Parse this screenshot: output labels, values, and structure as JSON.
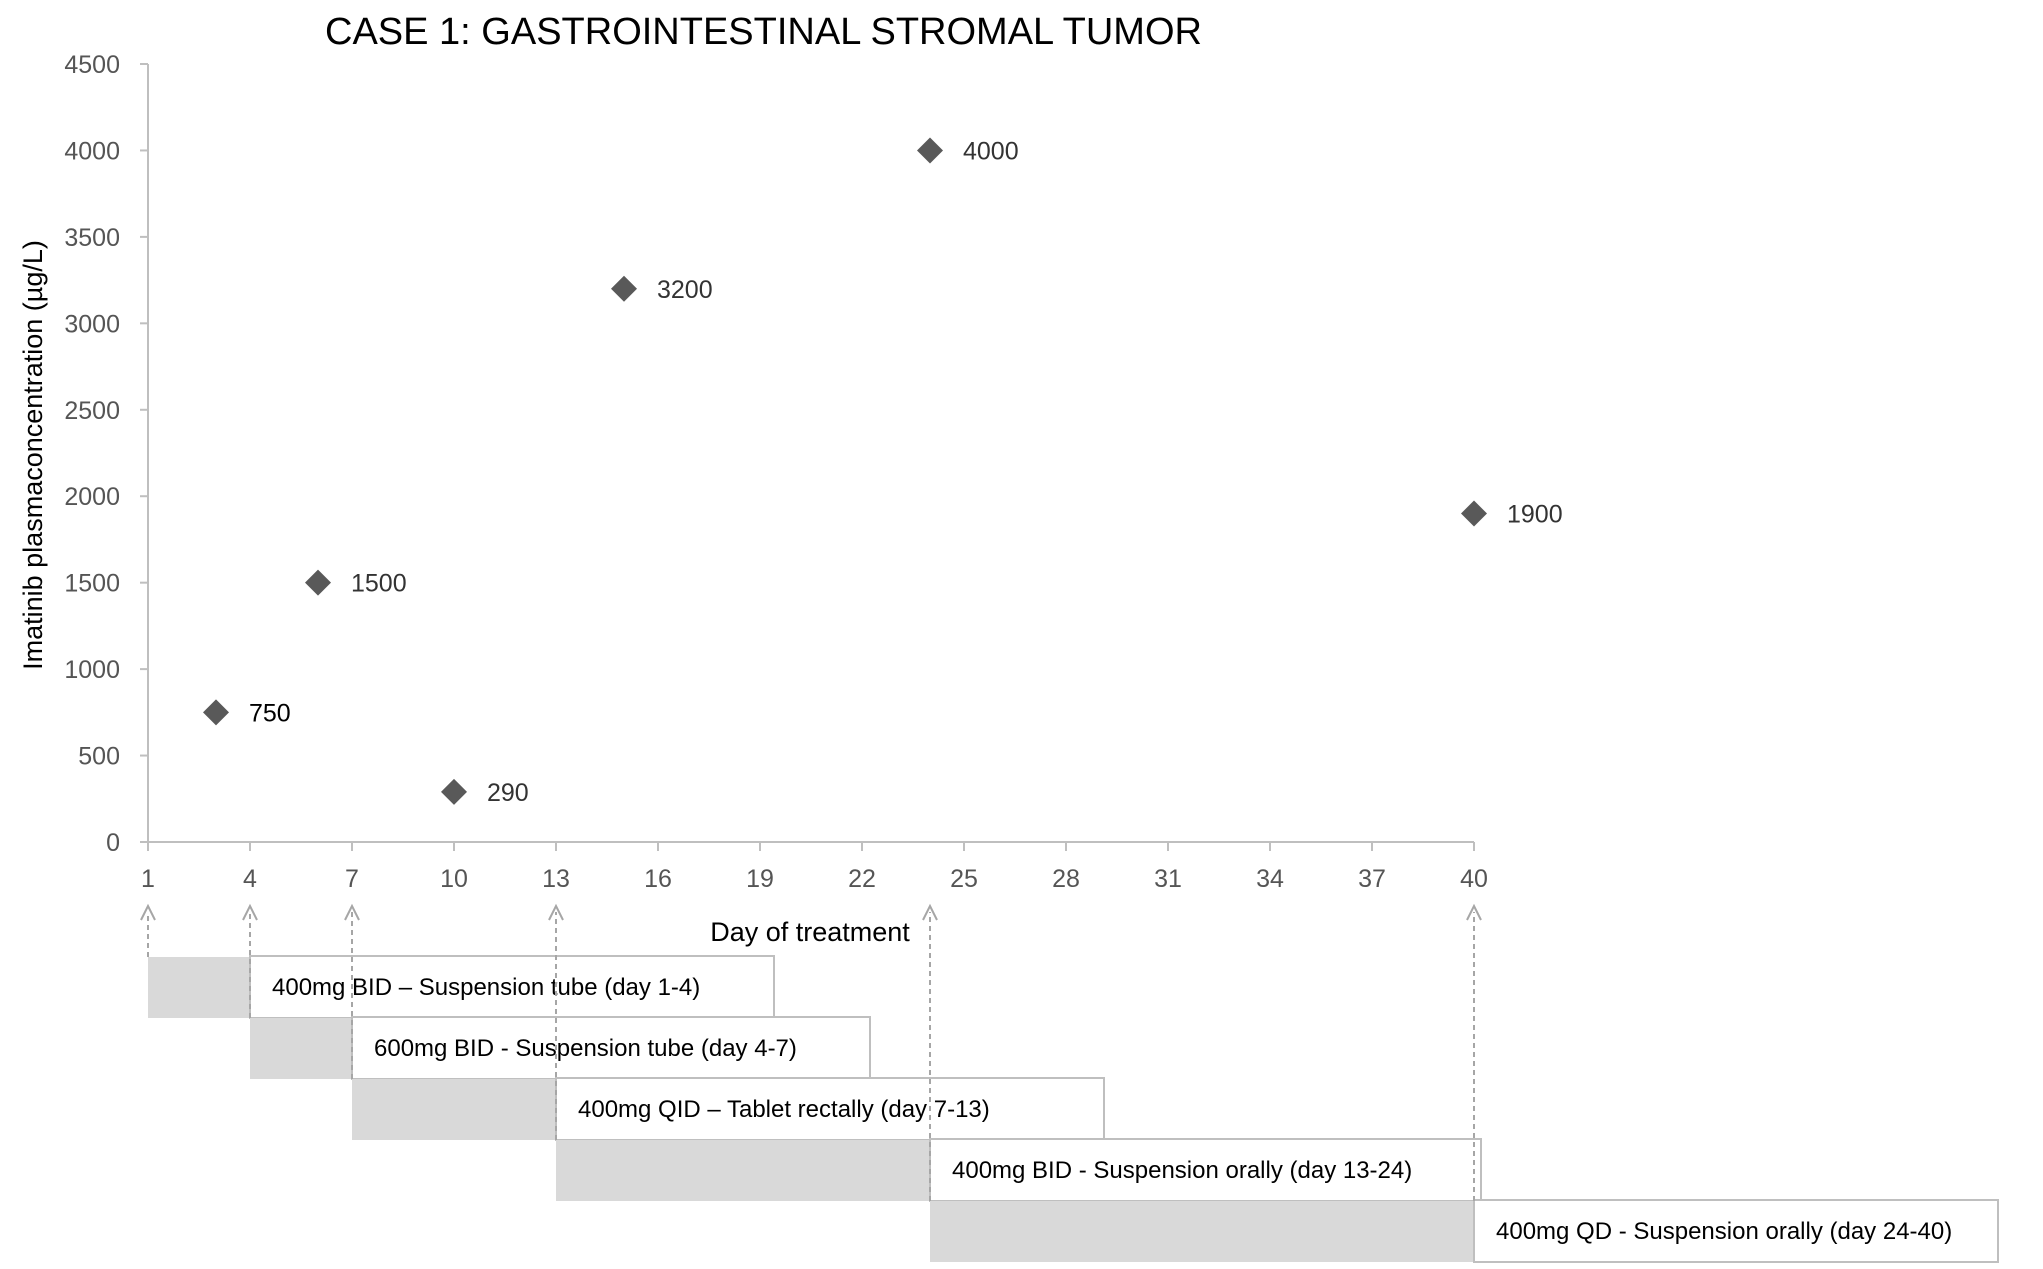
{
  "chart_data": {
    "type": "scatter",
    "title": "CASE 1: GASTROINTESTINAL STROMAL TUMOR",
    "xlabel": "Day of treatment",
    "ylabel": "Imatinib plasmaconcentration (µg/L)",
    "xlim": [
      1,
      40
    ],
    "ylim": [
      0,
      4500
    ],
    "x_ticks": [
      1,
      4,
      7,
      10,
      13,
      16,
      19,
      22,
      25,
      28,
      31,
      34,
      37,
      40
    ],
    "y_ticks": [
      0,
      500,
      1000,
      1500,
      2000,
      2500,
      3000,
      3500,
      4000,
      4500
    ],
    "grid": false,
    "legend": "none",
    "marker": "diamond",
    "marker_color": "#595959",
    "points": [
      {
        "x": 3,
        "y": 750,
        "label": "750"
      },
      {
        "x": 6,
        "y": 1500,
        "label": "1500"
      },
      {
        "x": 10,
        "y": 290,
        "label": "290"
      },
      {
        "x": 15,
        "y": 3200,
        "label": "3200"
      },
      {
        "x": 24,
        "y": 4000,
        "label": "4000"
      },
      {
        "x": 40,
        "y": 1900,
        "label": "1900"
      }
    ],
    "regimen_arrows_at_day": [
      1,
      4,
      7,
      13,
      24,
      40
    ],
    "regimens": [
      {
        "start": 1,
        "end": 4,
        "label": "400mg BID – Suspension tube (day 1-4)"
      },
      {
        "start": 4,
        "end": 7,
        "label": "600mg BID - Suspension tube (day 4-7)"
      },
      {
        "start": 7,
        "end": 13,
        "label": "400mg QID – Tablet rectally (day 7-13)"
      },
      {
        "start": 13,
        "end": 24,
        "label": "400mg BID - Suspension orally (day 13-24)"
      },
      {
        "start": 24,
        "end": 40,
        "label": "400mg QD - Suspension orally (day 24-40)"
      }
    ]
  }
}
